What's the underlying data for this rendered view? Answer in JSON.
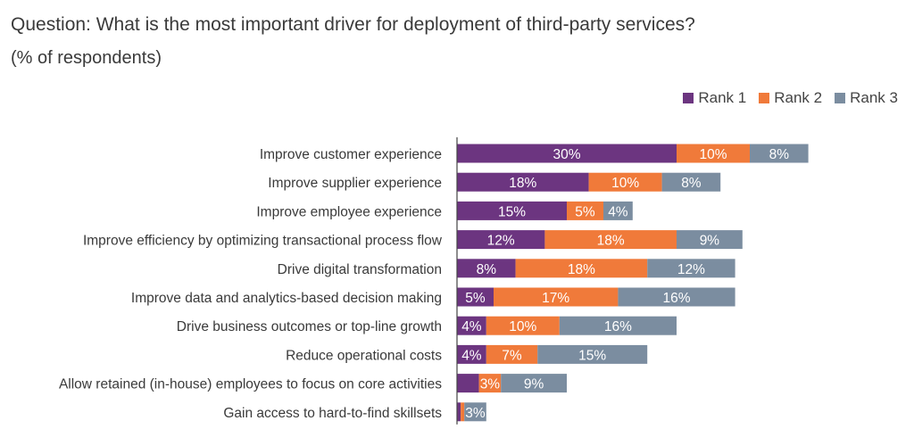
{
  "header": {
    "title": "Question: What is the most important driver for deployment of third-party services?",
    "subtitle": "(% of respondents)"
  },
  "legend": {
    "items": [
      {
        "name": "Rank 1",
        "color": "#6c3580"
      },
      {
        "name": "Rank 2",
        "color": "#f07a3a"
      },
      {
        "name": "Rank 3",
        "color": "#7b8da0"
      }
    ]
  },
  "chart_data": {
    "type": "bar",
    "orientation": "horizontal",
    "stacked": true,
    "categories": [
      "Improve customer experience",
      "Improve supplier experience",
      "Improve employee experience",
      "Improve efficiency by optimizing transactional process flow",
      "Drive digital transformation",
      "Improve data and analytics-based decision making",
      "Drive business outcomes or top-line growth",
      "Reduce operational costs",
      "Allow retained (in-house) employees to focus on core activities",
      "Gain access to hard-to-find skillsets"
    ],
    "series": [
      {
        "name": "Rank 1",
        "color": "#6c3580",
        "values": [
          30,
          18,
          15,
          12,
          8,
          5,
          4,
          4,
          3,
          0.5
        ],
        "labels": [
          "30%",
          "18%",
          "15%",
          "12%",
          "8%",
          "5%",
          "4%",
          "4%",
          "",
          ""
        ]
      },
      {
        "name": "Rank 2",
        "color": "#f07a3a",
        "values": [
          10,
          10,
          5,
          18,
          18,
          17,
          10,
          7,
          3,
          0.5
        ],
        "labels": [
          "10%",
          "10%",
          "5%",
          "18%",
          "18%",
          "17%",
          "10%",
          "7%",
          "3%",
          ""
        ]
      },
      {
        "name": "Rank 3",
        "color": "#7b8da0",
        "values": [
          8,
          8,
          4,
          9,
          12,
          16,
          16,
          15,
          9,
          3
        ],
        "labels": [
          "8%",
          "8%",
          "4%",
          "9%",
          "12%",
          "16%",
          "16%",
          "15%",
          "9%",
          "3%"
        ]
      }
    ],
    "legend_position": "top-right",
    "grid": false,
    "xlim": [
      0,
      60
    ]
  }
}
